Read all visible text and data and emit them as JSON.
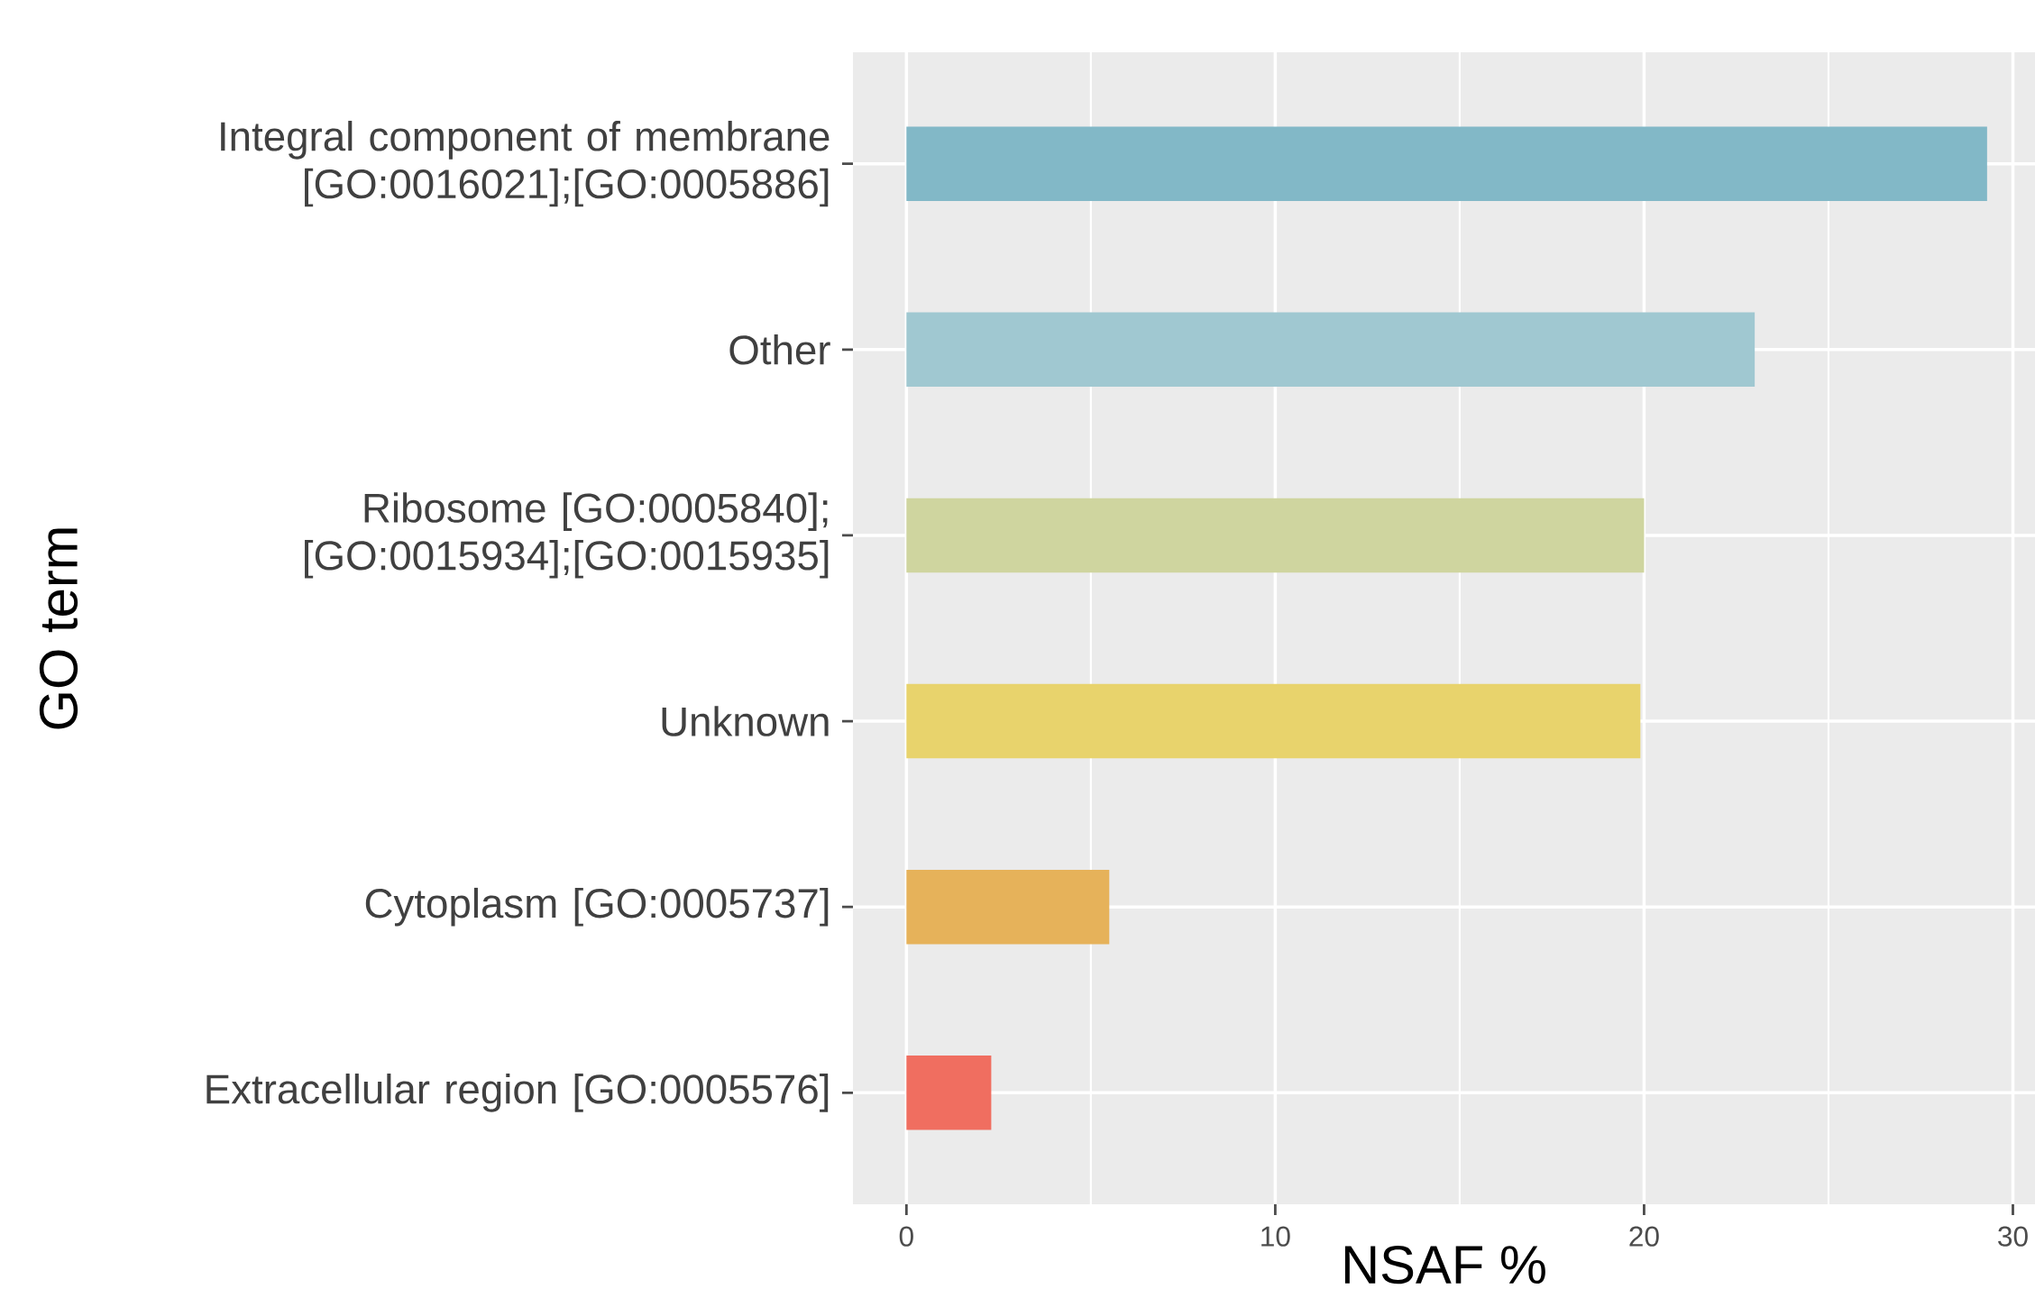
{
  "chart_data": {
    "type": "bar",
    "orientation": "horizontal",
    "xlabel": "NSAF %",
    "ylabel": "GO term",
    "categories": [
      "Integral component of membrane [GO:0016021];[GO:0005886]",
      "Other",
      "Ribosome [GO:0005840]; [GO:0015934];[GO:0015935]",
      "Unknown",
      "Cytoplasm [GO:0005737]",
      "Extracellular region [GO:0005576]"
    ],
    "values": [
      29.3,
      23.0,
      20.0,
      19.9,
      5.5,
      2.3
    ],
    "colors": [
      "#82b8c7",
      "#a0c8d1",
      "#cfd59f",
      "#e8d36c",
      "#e6b25a",
      "#f06e60"
    ],
    "xlim": [
      -1.45,
      30.6
    ],
    "xticks": [
      0,
      10,
      20,
      30
    ],
    "grid": true
  }
}
